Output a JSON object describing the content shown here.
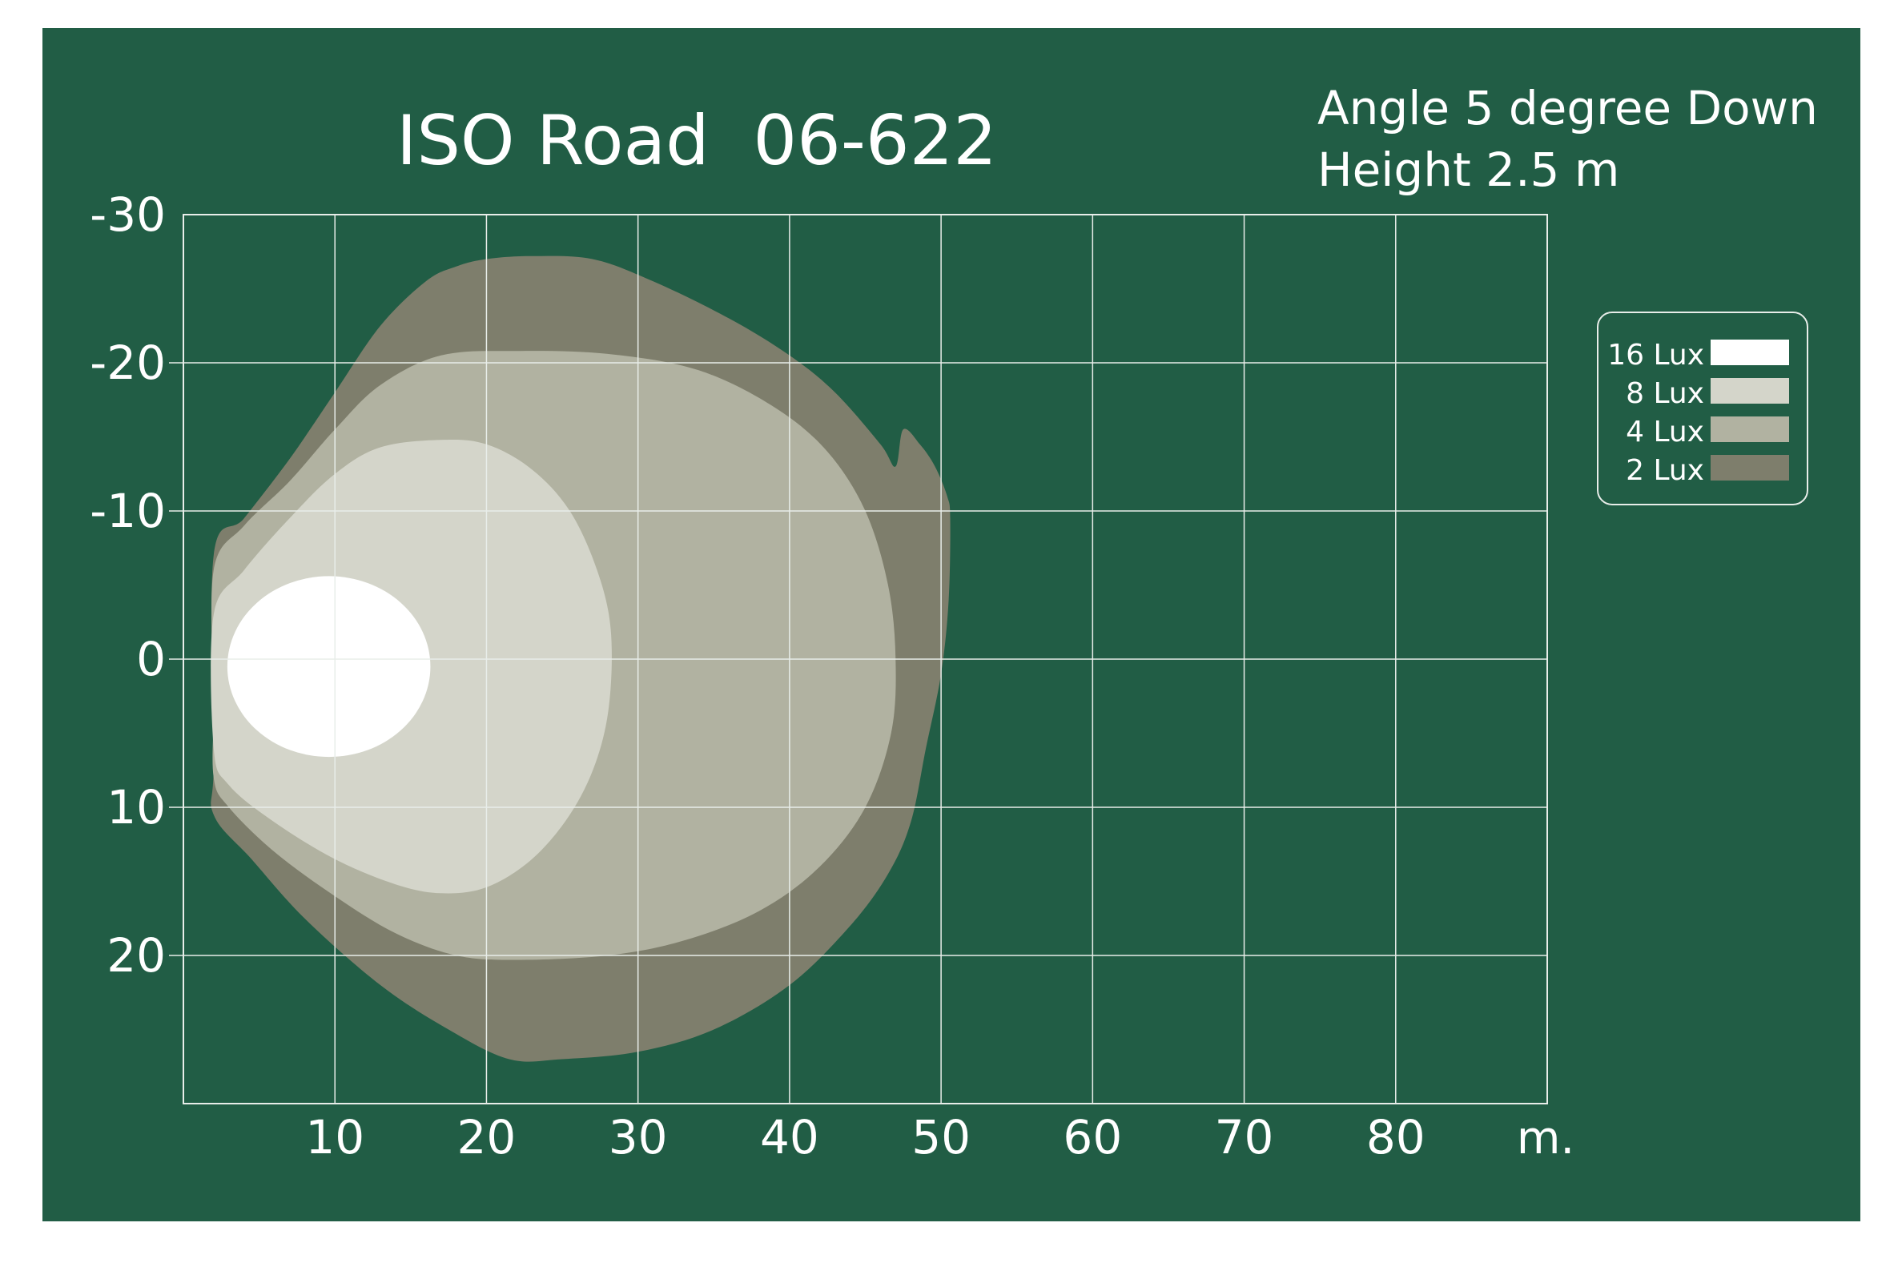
{
  "chart_data": {
    "type": "heatmap",
    "title": "ISO Road  06-622",
    "subtitle_lines": [
      "Angle 5 degree Down",
      "Height 2.5 m"
    ],
    "x_unit": "m.",
    "x_ticks": [
      10,
      20,
      30,
      40,
      50,
      60,
      70,
      80
    ],
    "y_ticks": [
      -30,
      -20,
      -10,
      0,
      10,
      20
    ],
    "xlim": [
      0,
      90
    ],
    "ylim": [
      -30,
      30
    ],
    "grid": true,
    "legend_position": "right",
    "colors": {
      "background": "#215d45",
      "grid": "#e8ede9"
    },
    "series": [
      {
        "name": "2 Lux",
        "color": "#7e7e6c",
        "points": [
          [
            2,
            -7
          ],
          [
            4,
            -9.5
          ],
          [
            7,
            -13.5
          ],
          [
            10,
            -18
          ],
          [
            13,
            -22.5
          ],
          [
            16,
            -25.5
          ],
          [
            18,
            -26.5
          ],
          [
            20,
            -27
          ],
          [
            23,
            -27.2
          ],
          [
            27,
            -27
          ],
          [
            31,
            -25.5
          ],
          [
            36,
            -23
          ],
          [
            40,
            -20.5
          ],
          [
            43,
            -18
          ],
          [
            46,
            -14.5
          ],
          [
            47,
            -13
          ],
          [
            47.5,
            -15.5
          ],
          [
            48.6,
            -14.5
          ],
          [
            49.6,
            -13
          ],
          [
            50.4,
            -11
          ],
          [
            50.6,
            -9.5
          ],
          [
            50.5,
            -4
          ],
          [
            50,
            1
          ],
          [
            49,
            6
          ],
          [
            48,
            11
          ],
          [
            46.5,
            14.5
          ],
          [
            44,
            18
          ],
          [
            40,
            22
          ],
          [
            35,
            25
          ],
          [
            30,
            26.5
          ],
          [
            25,
            27
          ],
          [
            21.5,
            27
          ],
          [
            17.5,
            25
          ],
          [
            13,
            22
          ],
          [
            8,
            17.5
          ],
          [
            4.5,
            13.5
          ],
          [
            2,
            10.5
          ],
          [
            2,
            7
          ]
        ]
      },
      {
        "name": "4 Lux",
        "color": "#b1b2a1",
        "points": [
          [
            2,
            -6
          ],
          [
            4,
            -9
          ],
          [
            7,
            -12
          ],
          [
            10,
            -15.5
          ],
          [
            13,
            -18.5
          ],
          [
            17,
            -20.5
          ],
          [
            22,
            -20.8
          ],
          [
            28,
            -20.6
          ],
          [
            34,
            -19.5
          ],
          [
            39,
            -17
          ],
          [
            42.5,
            -14
          ],
          [
            45,
            -10
          ],
          [
            46.5,
            -5
          ],
          [
            47,
            0
          ],
          [
            46.7,
            5
          ],
          [
            45,
            10
          ],
          [
            42,
            14
          ],
          [
            38,
            17
          ],
          [
            33,
            19
          ],
          [
            28,
            20
          ],
          [
            22,
            20.3
          ],
          [
            18,
            20
          ],
          [
            14,
            18.5
          ],
          [
            10,
            16
          ],
          [
            6,
            13
          ],
          [
            3,
            10
          ],
          [
            2,
            8
          ],
          [
            2,
            3
          ]
        ]
      },
      {
        "name": "8 Lux",
        "color": "#d4d5ca",
        "points": [
          [
            2,
            -3
          ],
          [
            4,
            -6
          ],
          [
            7,
            -9.5
          ],
          [
            10,
            -12.5
          ],
          [
            13,
            -14.3
          ],
          [
            17,
            -14.8
          ],
          [
            20,
            -14.5
          ],
          [
            23,
            -12.8
          ],
          [
            25.5,
            -10
          ],
          [
            27.3,
            -6
          ],
          [
            28.2,
            -2
          ],
          [
            28.1,
            3
          ],
          [
            27.2,
            7
          ],
          [
            25.5,
            10.5
          ],
          [
            23,
            13.5
          ],
          [
            20,
            15.4
          ],
          [
            17,
            15.8
          ],
          [
            14,
            15.2
          ],
          [
            10,
            13.5
          ],
          [
            6,
            11
          ],
          [
            3,
            8.5
          ],
          [
            2,
            6
          ]
        ]
      },
      {
        "name": "16 Lux",
        "color": "#ffffff",
        "ellipse": {
          "cx": 9.6,
          "cy": 0.5,
          "rx": 6.7,
          "ry": 6.1
        }
      }
    ]
  }
}
